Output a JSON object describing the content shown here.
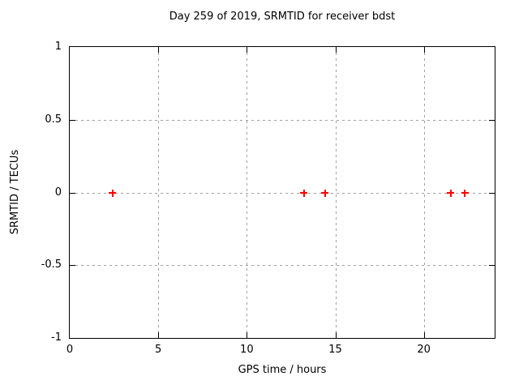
{
  "chart_data": {
    "type": "scatter",
    "title": "Day 259 of 2019, SRMTID for receiver bdst",
    "xlabel": "GPS time / hours",
    "ylabel": "SRMTID / TECUs",
    "xlim": [
      0,
      24
    ],
    "ylim": [
      -1,
      1
    ],
    "xticks": [
      0,
      5,
      10,
      15,
      20
    ],
    "yticks": [
      -1,
      -0.5,
      0,
      0.5,
      1
    ],
    "grid": true,
    "legend_position": "none",
    "marker": "plus",
    "marker_color": "#ff0000",
    "grid_color": "#a0a0a0",
    "axis_color": "#000000",
    "background_color": "#ffffff",
    "series": [
      {
        "name": "SRMTID",
        "x": [
          2.4,
          13.2,
          14.4,
          21.5,
          22.3
        ],
        "y": [
          0,
          0,
          0,
          0,
          0
        ]
      }
    ]
  }
}
